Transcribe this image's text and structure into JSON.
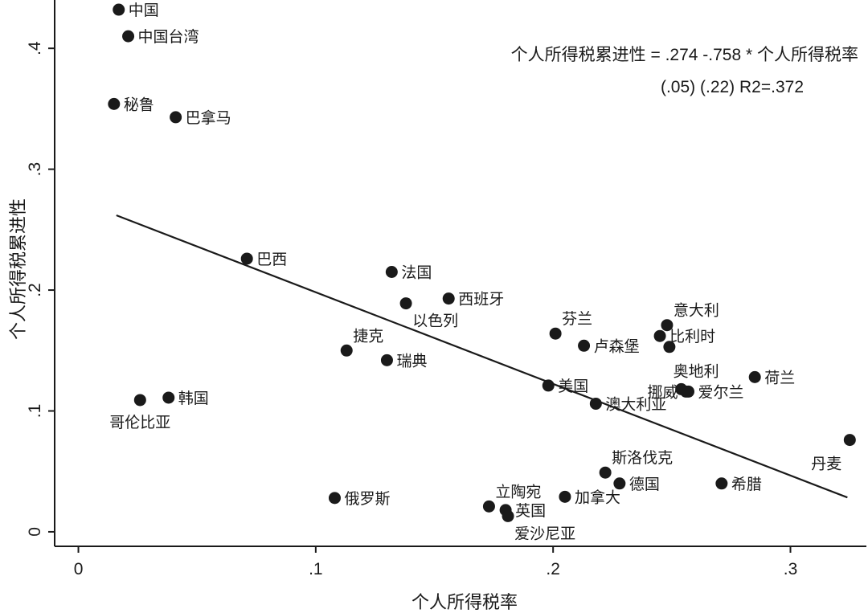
{
  "chart_data": {
    "type": "scatter",
    "xlabel": "个人所得税率",
    "ylabel": "个人所得税累进性",
    "xlim": [
      -0.01,
      0.332
    ],
    "ylim": [
      -0.012,
      0.44
    ],
    "x_ticks": [
      {
        "value": 0,
        "label": "0"
      },
      {
        "value": 0.1,
        "label": ".1"
      },
      {
        "value": 0.2,
        "label": ".2"
      },
      {
        "value": 0.3,
        "label": ".3"
      }
    ],
    "y_ticks": [
      {
        "value": 0,
        "label": "0"
      },
      {
        "value": 0.1,
        "label": ".1"
      },
      {
        "value": 0.2,
        "label": ".2"
      },
      {
        "value": 0.3,
        "label": ".3"
      },
      {
        "value": 0.4,
        "label": ".4"
      }
    ],
    "points": [
      {
        "label": "中国",
        "x": 0.017,
        "y": 0.432,
        "pos": "right"
      },
      {
        "label": "中国台湾",
        "x": 0.021,
        "y": 0.41,
        "pos": "right"
      },
      {
        "label": "秘鲁",
        "x": 0.015,
        "y": 0.354,
        "pos": "right"
      },
      {
        "label": "巴拿马",
        "x": 0.041,
        "y": 0.343,
        "pos": "right"
      },
      {
        "label": "巴西",
        "x": 0.071,
        "y": 0.226,
        "pos": "right"
      },
      {
        "label": "法国",
        "x": 0.132,
        "y": 0.215,
        "pos": "right"
      },
      {
        "label": "西班牙",
        "x": 0.156,
        "y": 0.193,
        "pos": "right"
      },
      {
        "label": "以色列",
        "x": 0.138,
        "y": 0.189,
        "pos": "below-right"
      },
      {
        "label": "捷克",
        "x": 0.113,
        "y": 0.15,
        "pos": "above-right"
      },
      {
        "label": "瑞典",
        "x": 0.13,
        "y": 0.142,
        "pos": "right"
      },
      {
        "label": "哥伦比亚",
        "x": 0.026,
        "y": 0.109,
        "pos": "below"
      },
      {
        "label": "韩国",
        "x": 0.038,
        "y": 0.111,
        "pos": "right"
      },
      {
        "label": "芬兰",
        "x": 0.201,
        "y": 0.164,
        "pos": "above-right"
      },
      {
        "label": "卢森堡",
        "x": 0.213,
        "y": 0.154,
        "pos": "right"
      },
      {
        "label": "意大利",
        "x": 0.248,
        "y": 0.171,
        "pos": "above-right"
      },
      {
        "label": "比利时",
        "x": 0.245,
        "y": 0.162,
        "pos": "right"
      },
      {
        "label": "",
        "x": 0.249,
        "y": 0.153,
        "pos": "none"
      },
      {
        "label": "奥地利",
        "x": 0.254,
        "y": 0.118,
        "pos": "above"
      },
      {
        "label": "挪威",
        "x": 0.256,
        "y": 0.116,
        "pos": "left"
      },
      {
        "label": "爱尔兰",
        "x": 0.257,
        "y": 0.116,
        "pos": "right"
      },
      {
        "label": "荷兰",
        "x": 0.285,
        "y": 0.128,
        "pos": "right"
      },
      {
        "label": "美国",
        "x": 0.198,
        "y": 0.121,
        "pos": "right"
      },
      {
        "label": "澳大利亚",
        "x": 0.218,
        "y": 0.106,
        "pos": "right"
      },
      {
        "label": "丹麦",
        "x": 0.325,
        "y": 0.076,
        "pos": "below-left"
      },
      {
        "label": "斯洛伐克",
        "x": 0.222,
        "y": 0.049,
        "pos": "above-right"
      },
      {
        "label": "德国",
        "x": 0.228,
        "y": 0.04,
        "pos": "right"
      },
      {
        "label": "希腊",
        "x": 0.271,
        "y": 0.04,
        "pos": "right"
      },
      {
        "label": "俄罗斯",
        "x": 0.108,
        "y": 0.028,
        "pos": "right"
      },
      {
        "label": "加拿大",
        "x": 0.205,
        "y": 0.029,
        "pos": "right"
      },
      {
        "label": "立陶宛",
        "x": 0.173,
        "y": 0.021,
        "pos": "above-right"
      },
      {
        "label": "英国",
        "x": 0.18,
        "y": 0.018,
        "pos": "right"
      },
      {
        "label": "爱沙尼亚",
        "x": 0.181,
        "y": 0.013,
        "pos": "below-right"
      }
    ],
    "regression": {
      "intercept": 0.274,
      "slope": -0.758,
      "x_from": 0.016,
      "x_to": 0.324
    },
    "annotation": {
      "line1": "个人所得税累进性 = .274 -.758 * 个人所得税率",
      "line2": "(.05)   (.22)   R2=.372"
    },
    "grid": false,
    "legend": "none"
  }
}
